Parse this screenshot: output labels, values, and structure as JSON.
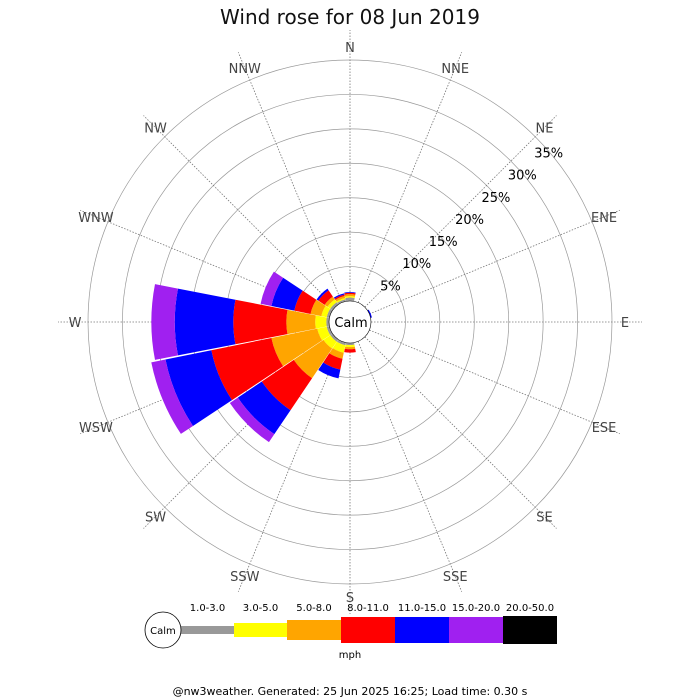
{
  "title": "Wind rose for 08 Jun 2019",
  "chart_data": {
    "type": "wind-rose",
    "title": "Wind rose for 08 Jun 2019",
    "directions": [
      "N",
      "NNE",
      "NE",
      "ENE",
      "E",
      "ESE",
      "SE",
      "SSE",
      "S",
      "SSW",
      "SW",
      "WSW",
      "W",
      "WNW",
      "NW",
      "NNW"
    ],
    "rings": [
      "5%",
      "10%",
      "15%",
      "20%",
      "25%",
      "30%",
      "35%"
    ],
    "ring_values": [
      5,
      10,
      15,
      20,
      25,
      30,
      35
    ],
    "radial_max": 35,
    "calm_label": "Calm",
    "speed_bins": [
      "1.0-3.0",
      "3.0-5.0",
      "5.0-8.0",
      "8.0-11.0",
      "11.0-15.0",
      "15.0-20.0",
      "20.0-50.0"
    ],
    "bin_colors": [
      "#999999",
      "#ffff00",
      "#ffa500",
      "#ff0000",
      "#0000ff",
      "#a020f0",
      "#000000"
    ],
    "unit": "mph",
    "cumulative_percent": {
      "N": [
        0.5,
        0.7,
        1.0,
        1.2,
        1.3,
        1.3,
        1.3
      ],
      "NNE": [
        0.0,
        0.0,
        0.0,
        0.0,
        0.0,
        0.0,
        0.0
      ],
      "NE": [
        0.0,
        0.0,
        0.0,
        0.0,
        0.0,
        0.0,
        0.0
      ],
      "ENE": [
        0.0,
        0.0,
        0.0,
        0.0,
        0.2,
        0.2,
        0.2
      ],
      "E": [
        0.0,
        0.0,
        0.0,
        0.0,
        0.0,
        0.0,
        0.0
      ],
      "ESE": [
        0.0,
        0.0,
        0.0,
        0.0,
        0.0,
        0.0,
        0.0
      ],
      "SE": [
        0.0,
        0.0,
        0.0,
        0.0,
        0.0,
        0.0,
        0.0
      ],
      "SSE": [
        0.0,
        0.0,
        0.0,
        0.0,
        0.0,
        0.0,
        0.0
      ],
      "S": [
        0.3,
        0.6,
        0.9,
        1.4,
        1.4,
        1.4,
        1.4
      ],
      "SSW": [
        0.4,
        1.5,
        2.4,
        4.0,
        5.3,
        5.3,
        5.3
      ],
      "SW": [
        0.4,
        1.6,
        6.8,
        12.4,
        16.6,
        18.0,
        18.0
      ],
      "WSW": [
        0.4,
        1.8,
        8.6,
        17.5,
        24.3,
        26.4,
        26.4
      ],
      "W": [
        0.4,
        2.0,
        6.2,
        13.9,
        22.4,
        25.8,
        25.8
      ],
      "WNW": [
        0.4,
        1.2,
        2.8,
        5.2,
        8.6,
        10.2,
        10.2
      ],
      "NW": [
        0.4,
        0.9,
        1.4,
        2.5,
        2.8,
        2.8,
        2.8
      ],
      "NNW": [
        0.3,
        0.5,
        0.8,
        1.0,
        1.2,
        1.2,
        1.2
      ]
    }
  },
  "footer": "@nw3weather. Generated: 25 Jun 2025 16:25; Load time: 0.30 s"
}
